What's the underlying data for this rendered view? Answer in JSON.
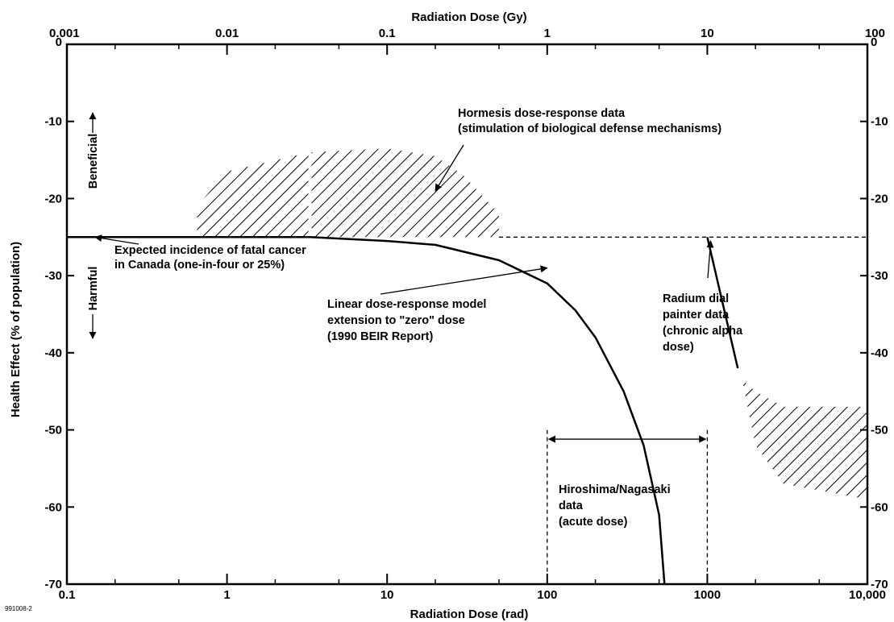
{
  "chart_data": {
    "type": "line",
    "top_axis": {
      "title": "Radiation Dose (Gy)",
      "scale": "log",
      "range": [
        0.001,
        100
      ],
      "ticks": [
        0.001,
        0.01,
        0.1,
        1,
        10,
        100
      ],
      "tick_labels": [
        "0.001",
        "0.01",
        "0.1",
        "1",
        "10",
        "100"
      ]
    },
    "bottom_axis": {
      "title": "Radiation Dose (rad)",
      "scale": "log",
      "range": [
        0.1,
        10000
      ],
      "ticks": [
        0.1,
        1,
        10,
        100,
        1000,
        10000
      ],
      "tick_labels": [
        "0.1",
        "1",
        "10",
        "100",
        "1000",
        "10,000"
      ]
    },
    "y_axis": {
      "title": "Health Effect (% of population)",
      "range": [
        0,
        -70
      ],
      "ticks": [
        0,
        -10,
        -20,
        -30,
        -40,
        -50,
        -60,
        -70
      ],
      "tick_labels": [
        "0",
        "-10",
        "-20",
        "-30",
        "-40",
        "-50",
        "-60",
        "-70"
      ]
    },
    "direction_labels": {
      "beneficial": "Beneficial",
      "harmful": "Harmful"
    },
    "series": [
      {
        "style": "solid",
        "x_rad": [
          0.1,
          1,
          3.3,
          10,
          20,
          50,
          100,
          150,
          200,
          300,
          400,
          500,
          540
        ],
        "y": [
          -25,
          -25,
          -25,
          -25.5,
          -26,
          -28,
          -31,
          -34.5,
          -38,
          -45,
          -52,
          -61,
          -70
        ]
      },
      {
        "style": "dashed",
        "x_rad": [
          50,
          10000
        ],
        "y": [
          -25,
          -25
        ]
      },
      {
        "style": "solid",
        "x_rad": [
          1000,
          1550
        ],
        "y": [
          -25,
          -42
        ]
      },
      {
        "style": "hatched-region",
        "x_rad": [
          0.65,
          1,
          3.3,
          10,
          20,
          30,
          50
        ],
        "y_top": [
          -21,
          -16.5,
          -14,
          -13.5,
          -14.5,
          -17,
          -22
        ],
        "y_bottom": [
          -25,
          -25,
          -25,
          -25,
          -25,
          -25,
          -25
        ]
      },
      {
        "style": "hatched-region",
        "x_rad": [
          1650,
          2000,
          3000,
          10000
        ],
        "y_top": [
          -43.5,
          -45,
          -47,
          -47
        ],
        "y_bottom": [
          -43.5,
          -52,
          -57,
          -59
        ]
      }
    ],
    "hiroshima_range_rad": [
      100,
      1000
    ],
    "annotations": [
      {
        "lines": [
          "Hormesis dose-response data",
          "(stimulation of biological defense mechanisms)"
        ],
        "arrow_to_rad": 20,
        "arrow_to_y": -19
      },
      {
        "lines": [
          "Expected incidence of fatal cancer",
          "in Canada (one-in-four or 25%)"
        ],
        "arrow_to_rad": 0.15,
        "arrow_to_y": -25
      },
      {
        "lines": [
          "Linear dose-response model",
          "extension to \"zero\" dose",
          "(1990 BEIR Report)"
        ],
        "arrow_to_rad": 100,
        "arrow_to_y": -29
      },
      {
        "lines": [
          "Radium dial",
          "painter data",
          "(chronic alpha",
          "dose)"
        ],
        "arrow_to_rad": 1050,
        "arrow_to_y": -25.5
      },
      {
        "lines": [
          "Hiroshima/Nagasaki",
          "data",
          "(acute dose)"
        ]
      }
    ],
    "figure_id": "991008-2",
    "grid": false,
    "legend": "none"
  }
}
